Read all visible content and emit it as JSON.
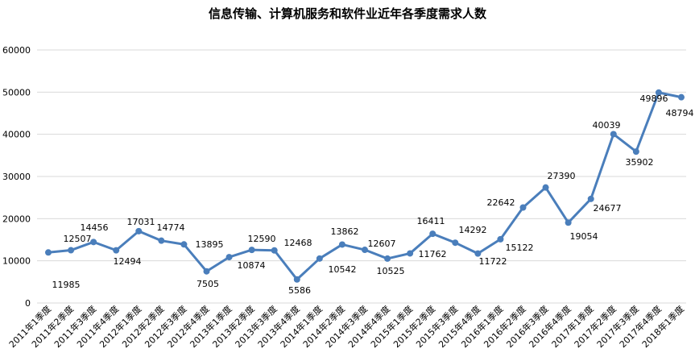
{
  "chart_data": {
    "type": "line",
    "title": "信息传输、计算机服务和软件业近年各季度需求人数",
    "xlabel": "",
    "ylabel": "",
    "ylim": [
      0,
      60000
    ],
    "yticks": [
      "0",
      "10000",
      "20000",
      "30000",
      "40000",
      "50000",
      "60000"
    ],
    "grid": true,
    "legend": "none",
    "line_color": "#4a7ebb",
    "categories": [
      "2011年1季度",
      "2011年2季度",
      "2011年3季度",
      "2011年4季度",
      "2012年1季度",
      "2012年2季度",
      "2012年3季度",
      "2012年4季度",
      "2013年1季度",
      "2013年2季度",
      "2013年3季度",
      "2013年4季度",
      "2014年1季度",
      "2014年2季度",
      "2014年3季度",
      "2014年4季度",
      "2015年1季度",
      "2015年2季度",
      "2015年3季度",
      "2015年4季度",
      "2016年1季度",
      "2016年2季度",
      "2016年3季度",
      "2016年4季度",
      "2017年1季度",
      "2017年2季度",
      "2017年3季度",
      "2017年4季度",
      "2018年1季度"
    ],
    "values": [
      11985,
      12507,
      14456,
      12494,
      17031,
      14774,
      13895,
      7505,
      10874,
      12590,
      12468,
      5586,
      10542,
      13862,
      12607,
      10525,
      11762,
      16411,
      14292,
      11722,
      15122,
      22642,
      27390,
      19054,
      24677,
      40039,
      35902,
      49896,
      48794
    ]
  }
}
